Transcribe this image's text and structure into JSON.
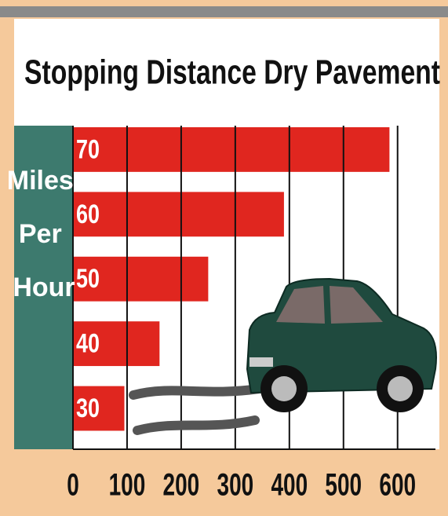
{
  "chart_data": {
    "type": "barh",
    "title": "Stopping Distance Dry Pavement",
    "y_label": "Miles Per Hour",
    "categories": [
      "70",
      "60",
      "50",
      "40",
      "30"
    ],
    "values": [
      585,
      390,
      250,
      160,
      95
    ],
    "color": "#e0261f",
    "xlim": [
      0,
      670
    ],
    "xticks": [
      0,
      100,
      200,
      300,
      400,
      500,
      600
    ],
    "grid": true
  }
}
